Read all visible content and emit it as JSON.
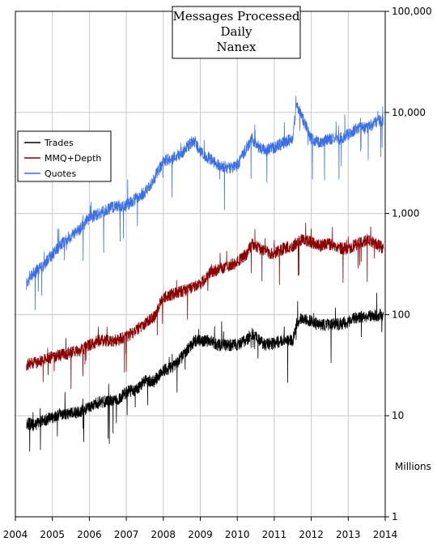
{
  "chart_data": {
    "type": "line",
    "title_lines": [
      "Messages Processed",
      "Daily",
      "Nanex"
    ],
    "ylabel": "Millions",
    "y_scale": "log",
    "ylim": [
      1,
      100000
    ],
    "xlim": [
      2004,
      2014
    ],
    "x_ticks": [
      "2004",
      "2005",
      "2006",
      "2007",
      "2008",
      "2009",
      "2010",
      "2011",
      "2012",
      "2013",
      "2014"
    ],
    "y_ticks": [
      {
        "value": 100000,
        "label": "100,000"
      },
      {
        "value": 10000,
        "label": "10,000"
      },
      {
        "value": 1000,
        "label": "1,000"
      },
      {
        "value": 100,
        "label": "100"
      },
      {
        "value": 10,
        "label": "10"
      },
      {
        "value": 1,
        "label": "1"
      }
    ],
    "grid": true,
    "legend_position": "left",
    "series": [
      {
        "name": "Trades",
        "color": "#000000",
        "x": [
          2004.3,
          2004.5,
          2004.75,
          2005.0,
          2005.25,
          2005.5,
          2005.75,
          2006.0,
          2006.25,
          2006.5,
          2006.75,
          2007.0,
          2007.25,
          2007.5,
          2007.75,
          2008.0,
          2008.25,
          2008.5,
          2008.75,
          2008.85,
          2009.0,
          2009.25,
          2009.5,
          2009.75,
          2010.0,
          2010.25,
          2010.4,
          2010.6,
          2010.75,
          2011.0,
          2011.25,
          2011.5,
          2011.6,
          2011.75,
          2012.0,
          2012.25,
          2012.5,
          2012.75,
          2013.0,
          2013.25,
          2013.5,
          2013.75,
          2013.95
        ],
        "y": [
          8.5,
          8,
          9,
          9.5,
          10.5,
          10.5,
          11,
          12,
          13.5,
          14,
          14,
          17,
          18,
          22,
          22,
          28,
          30,
          38,
          50,
          55,
          55,
          55,
          50,
          50,
          50,
          56,
          65,
          55,
          50,
          52,
          56,
          55,
          80,
          95,
          85,
          78,
          80,
          80,
          85,
          95,
          95,
          98,
          100
        ]
      },
      {
        "name": "MMQ+Depth",
        "color": "#8b0000",
        "x": [
          2004.3,
          2004.5,
          2004.75,
          2005.0,
          2005.25,
          2005.5,
          2005.75,
          2006.0,
          2006.25,
          2006.5,
          2006.75,
          2007.0,
          2007.25,
          2007.5,
          2007.75,
          2008.0,
          2008.25,
          2008.5,
          2008.75,
          2008.85,
          2009.0,
          2009.25,
          2009.5,
          2009.75,
          2010.0,
          2010.25,
          2010.4,
          2010.6,
          2010.75,
          2011.0,
          2011.25,
          2011.5,
          2011.75,
          2012.0,
          2012.25,
          2012.5,
          2012.75,
          2013.0,
          2013.25,
          2013.5,
          2013.75,
          2013.95
        ],
        "y": [
          32,
          33,
          35,
          38,
          40,
          42,
          44,
          50,
          55,
          55,
          56,
          60,
          70,
          80,
          95,
          150,
          160,
          170,
          180,
          190,
          200,
          260,
          280,
          300,
          330,
          400,
          500,
          450,
          420,
          400,
          450,
          480,
          550,
          520,
          480,
          500,
          450,
          450,
          500,
          550,
          500,
          450
        ]
      },
      {
        "name": "Quotes",
        "color": "#3a6fe8",
        "x": [
          2004.3,
          2004.5,
          2004.75,
          2005.0,
          2005.25,
          2005.5,
          2005.75,
          2006.0,
          2006.25,
          2006.5,
          2006.75,
          2007.0,
          2007.25,
          2007.5,
          2007.75,
          2008.0,
          2008.25,
          2008.5,
          2008.75,
          2008.85,
          2009.0,
          2009.25,
          2009.5,
          2009.75,
          2010.0,
          2010.25,
          2010.4,
          2010.6,
          2010.75,
          2011.0,
          2011.25,
          2011.5,
          2011.6,
          2011.75,
          2012.0,
          2012.25,
          2012.5,
          2012.75,
          2013.0,
          2013.25,
          2013.5,
          2013.75,
          2013.95
        ],
        "y": [
          200,
          260,
          300,
          400,
          500,
          600,
          700,
          900,
          1000,
          1100,
          1200,
          1200,
          1400,
          1600,
          2200,
          3300,
          3500,
          4000,
          5000,
          5200,
          4000,
          3500,
          3000,
          2800,
          3000,
          4500,
          5500,
          4500,
          4200,
          4500,
          5000,
          5500,
          12000,
          9000,
          5500,
          5000,
          5500,
          5500,
          6000,
          7000,
          7000,
          8000,
          8500
        ]
      }
    ]
  }
}
